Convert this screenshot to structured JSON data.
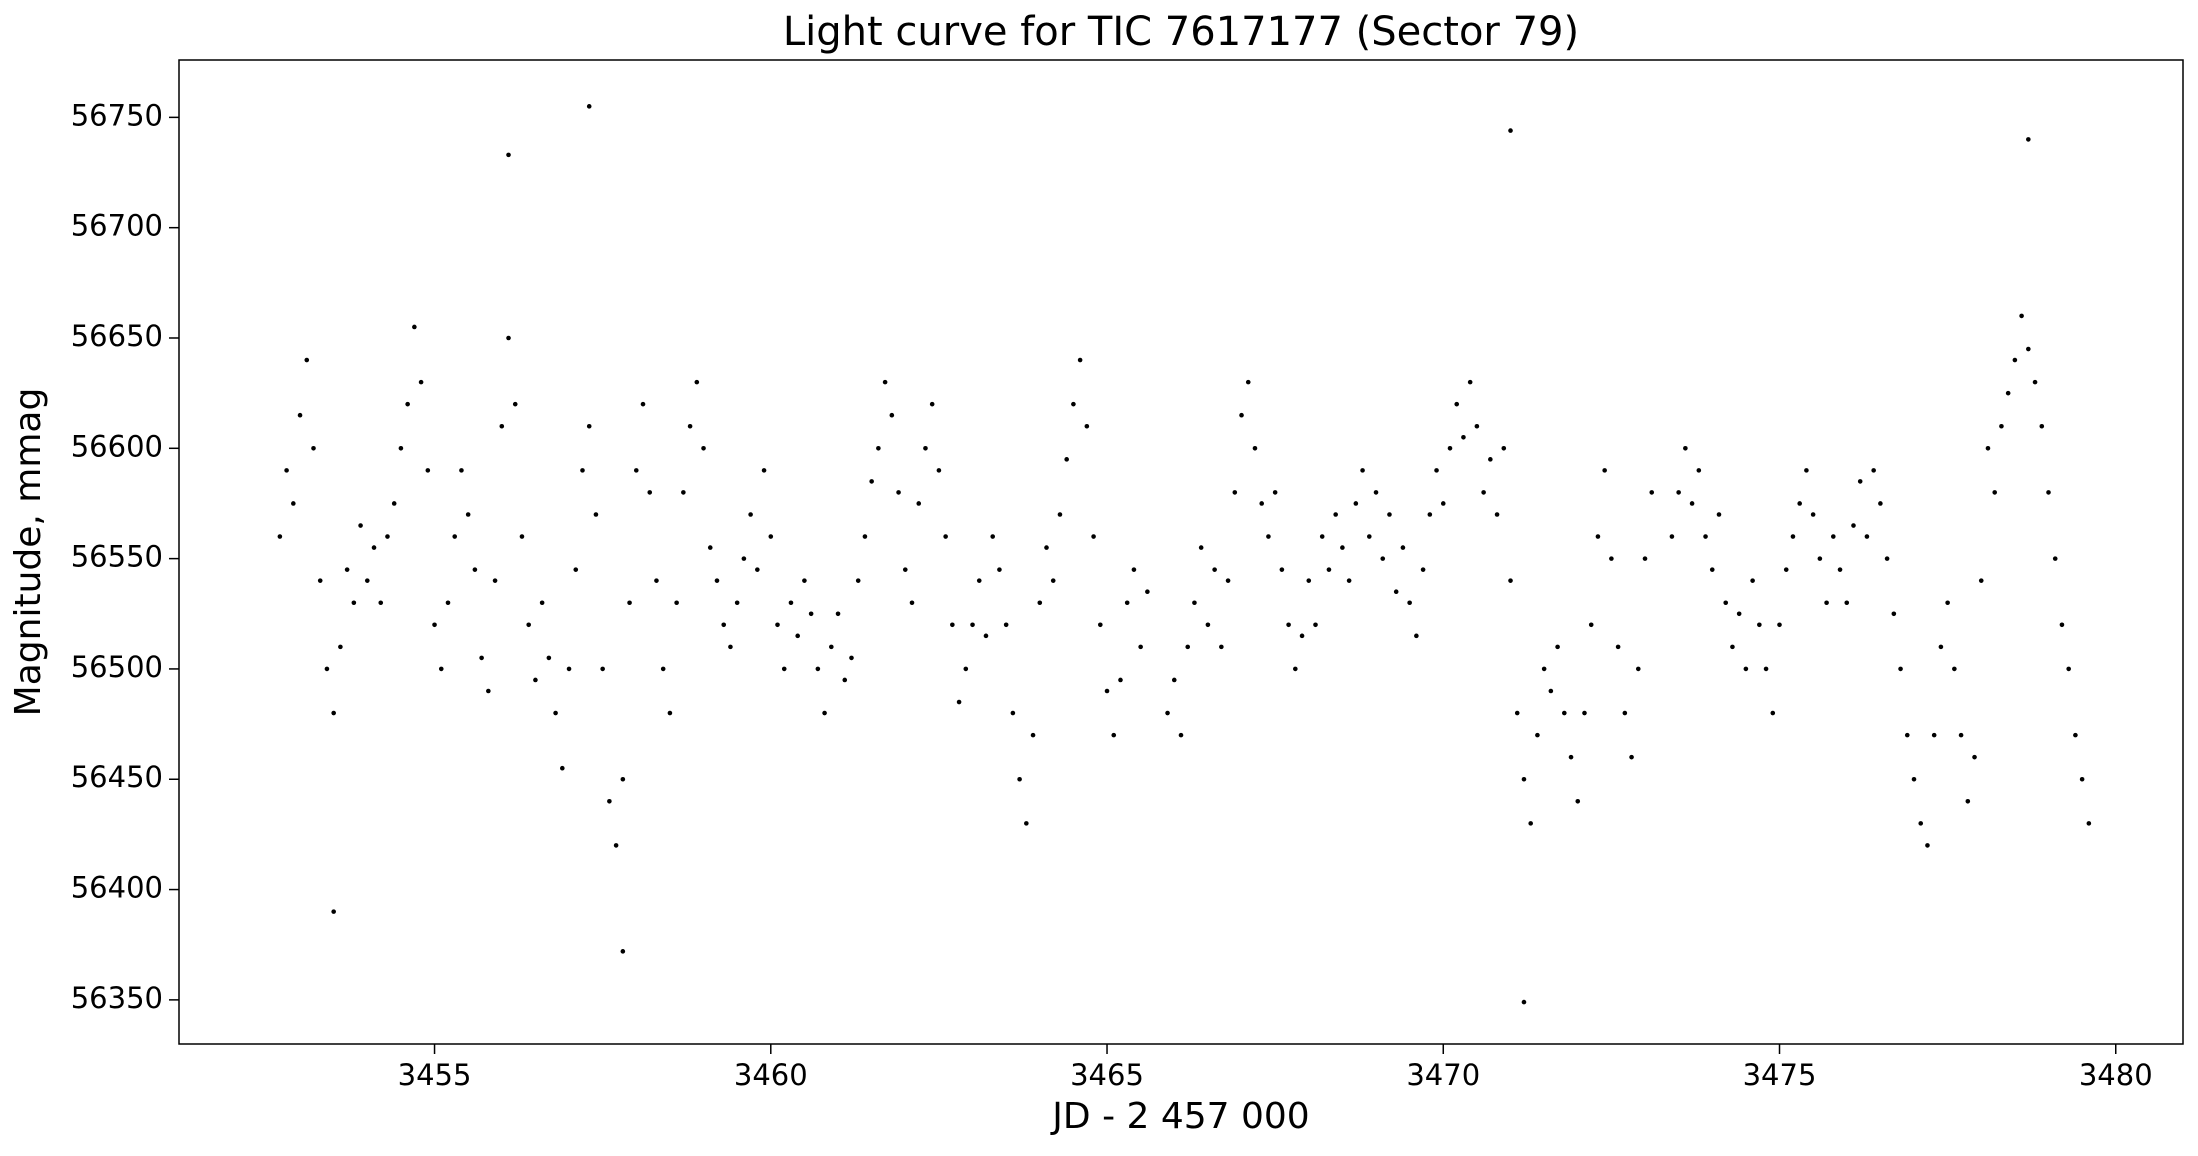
{
  "chart_data": {
    "type": "scatter",
    "title": "Light curve for TIC 7617177 (Sector 79)",
    "xlabel": "JD - 2 457 000",
    "ylabel": "Magnitude, mmag",
    "color": "#000000",
    "xlim": [
      3451.2,
      3481.0
    ],
    "ylim": [
      56330,
      56776
    ],
    "xticks": [
      3455,
      3460,
      3465,
      3470,
      3475,
      3480
    ],
    "yticks": [
      56350,
      56400,
      56450,
      56500,
      56550,
      56600,
      56650,
      56700,
      56750
    ],
    "grid": false,
    "x": [
      3452.7,
      3452.8,
      3452.9,
      3453.0,
      3453.1,
      3453.2,
      3453.3,
      3453.4,
      3453.5,
      3453.6,
      3453.7,
      3453.8,
      3453.9,
      3454.0,
      3454.1,
      3454.2,
      3454.3,
      3454.4,
      3454.5,
      3454.6,
      3454.7,
      3454.8,
      3454.9,
      3455.0,
      3455.1,
      3455.2,
      3455.3,
      3455.4,
      3455.5,
      3455.6,
      3455.7,
      3455.8,
      3455.9,
      3456.0,
      3456.1,
      3456.2,
      3456.3,
      3456.4,
      3456.5,
      3456.6,
      3456.7,
      3456.8,
      3456.9,
      3457.0,
      3457.1,
      3457.2,
      3457.3,
      3457.4,
      3457.5,
      3457.6,
      3457.7,
      3457.8,
      3457.9,
      3458.0,
      3458.1,
      3458.2,
      3458.3,
      3458.4,
      3458.5,
      3458.6,
      3458.7,
      3458.8,
      3458.9,
      3459.0,
      3459.1,
      3459.2,
      3459.3,
      3459.4,
      3459.5,
      3459.6,
      3459.7,
      3459.8,
      3459.9,
      3460.0,
      3460.1,
      3460.2,
      3460.3,
      3460.4,
      3460.5,
      3460.6,
      3460.7,
      3460.8,
      3460.9,
      3461.0,
      3461.1,
      3461.2,
      3461.3,
      3461.4,
      3461.5,
      3461.6,
      3461.7,
      3461.8,
      3461.9,
      3462.0,
      3462.1,
      3462.2,
      3462.3,
      3462.4,
      3462.5,
      3462.6,
      3462.7,
      3462.8,
      3462.9,
      3463.0,
      3463.1,
      3463.2,
      3463.3,
      3463.4,
      3463.5,
      3463.6,
      3463.7,
      3463.8,
      3463.9,
      3464.0,
      3464.1,
      3464.2,
      3464.3,
      3464.4,
      3464.5,
      3464.6,
      3464.7,
      3464.8,
      3464.9,
      3465.0,
      3465.1,
      3465.2,
      3465.3,
      3465.4,
      3465.5,
      3465.6,
      3465.9,
      3466.0,
      3466.1,
      3466.2,
      3466.3,
      3466.4,
      3466.5,
      3466.6,
      3466.7,
      3466.8,
      3466.9,
      3467.0,
      3467.1,
      3467.2,
      3467.3,
      3467.4,
      3467.5,
      3467.6,
      3467.7,
      3467.8,
      3467.9,
      3468.0,
      3468.1,
      3468.2,
      3468.3,
      3468.4,
      3468.5,
      3468.6,
      3468.7,
      3468.8,
      3468.9,
      3469.0,
      3469.1,
      3469.2,
      3469.3,
      3469.4,
      3469.5,
      3469.6,
      3469.7,
      3469.8,
      3469.9,
      3470.0,
      3470.1,
      3470.2,
      3470.3,
      3470.4,
      3470.5,
      3470.6,
      3470.7,
      3470.8,
      3470.9,
      3471.0,
      3471.1,
      3471.2,
      3471.3,
      3471.4,
      3471.5,
      3471.6,
      3471.7,
      3471.8,
      3471.9,
      3472.0,
      3472.1,
      3472.2,
      3472.3,
      3472.4,
      3472.5,
      3472.6,
      3472.7,
      3472.8,
      3472.9,
      3473.0,
      3473.1,
      3473.4,
      3473.5,
      3473.6,
      3473.7,
      3473.8,
      3473.9,
      3474.0,
      3474.1,
      3474.2,
      3474.3,
      3474.4,
      3474.5,
      3474.6,
      3474.7,
      3474.8,
      3474.9,
      3475.0,
      3475.1,
      3475.2,
      3475.3,
      3475.4,
      3475.5,
      3475.6,
      3475.7,
      3475.8,
      3475.9,
      3476.0,
      3476.1,
      3476.2,
      3476.3,
      3476.4,
      3476.5,
      3476.6,
      3476.7,
      3476.8,
      3476.9,
      3477.0,
      3477.1,
      3477.2,
      3477.3,
      3477.4,
      3477.5,
      3477.6,
      3477.7,
      3477.8,
      3477.9,
      3478.0,
      3478.1,
      3478.2,
      3478.3,
      3478.4,
      3478.5,
      3478.6,
      3478.7,
      3478.8,
      3478.9,
      3479.0,
      3479.1,
      3479.2,
      3479.3,
      3479.4,
      3479.5,
      3479.6,
      3457.3,
      3456.1,
      3471.0,
      3471.2,
      3478.7,
      3457.8,
      3453.5
    ],
    "values": [
      56560,
      56590,
      56575,
      56615,
      56640,
      56600,
      56540,
      56500,
      56480,
      56510,
      56545,
      56530,
      56565,
      56540,
      56555,
      56530,
      56560,
      56575,
      56600,
      56620,
      56655,
      56630,
      56590,
      56520,
      56500,
      56530,
      56560,
      56590,
      56570,
      56545,
      56505,
      56490,
      56540,
      56610,
      56650,
      56620,
      56560,
      56520,
      56495,
      56530,
      56505,
      56480,
      56455,
      56500,
      56545,
      56590,
      56610,
      56570,
      56500,
      56440,
      56420,
      56450,
      56530,
      56590,
      56620,
      56580,
      56540,
      56500,
      56480,
      56530,
      56580,
      56610,
      56630,
      56600,
      56555,
      56540,
      56520,
      56510,
      56530,
      56550,
      56570,
      56545,
      56590,
      56560,
      56520,
      56500,
      56530,
      56515,
      56540,
      56525,
      56500,
      56480,
      56510,
      56525,
      56495,
      56505,
      56540,
      56560,
      56585,
      56600,
      56630,
      56615,
      56580,
      56545,
      56530,
      56575,
      56600,
      56620,
      56590,
      56560,
      56520,
      56485,
      56500,
      56520,
      56540,
      56515,
      56560,
      56545,
      56520,
      56480,
      56450,
      56430,
      56470,
      56530,
      56555,
      56540,
      56570,
      56595,
      56620,
      56640,
      56610,
      56560,
      56520,
      56490,
      56470,
      56495,
      56530,
      56545,
      56510,
      56535,
      56480,
      56495,
      56470,
      56510,
      56530,
      56555,
      56520,
      56545,
      56510,
      56540,
      56580,
      56615,
      56630,
      56600,
      56575,
      56560,
      56580,
      56545,
      56520,
      56500,
      56515,
      56540,
      56520,
      56560,
      56545,
      56570,
      56555,
      56540,
      56575,
      56590,
      56560,
      56580,
      56550,
      56570,
      56535,
      56555,
      56530,
      56515,
      56545,
      56570,
      56590,
      56575,
      56600,
      56620,
      56605,
      56630,
      56610,
      56580,
      56595,
      56570,
      56600,
      56540,
      56480,
      56450,
      56430,
      56470,
      56500,
      56490,
      56510,
      56480,
      56460,
      56440,
      56480,
      56520,
      56560,
      56590,
      56550,
      56510,
      56480,
      56460,
      56500,
      56550,
      56580,
      56560,
      56580,
      56600,
      56575,
      56590,
      56560,
      56545,
      56570,
      56530,
      56510,
      56525,
      56500,
      56540,
      56520,
      56500,
      56480,
      56520,
      56545,
      56560,
      56575,
      56590,
      56570,
      56550,
      56530,
      56560,
      56545,
      56530,
      56565,
      56585,
      56560,
      56590,
      56575,
      56550,
      56525,
      56500,
      56470,
      56450,
      56430,
      56420,
      56470,
      56510,
      56530,
      56500,
      56470,
      56440,
      56460,
      56540,
      56600,
      56580,
      56610,
      56625,
      56640,
      56660,
      56645,
      56630,
      56610,
      56580,
      56550,
      56520,
      56500,
      56470,
      56450,
      56430,
      56755,
      56733,
      56744,
      56349,
      56740,
      56372,
      56390
    ]
  }
}
